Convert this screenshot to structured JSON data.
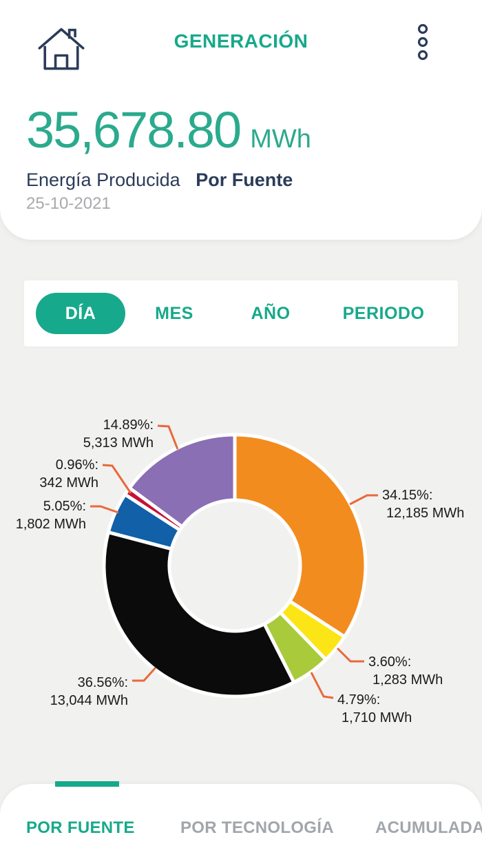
{
  "header": {
    "title": "GENERACIÓN",
    "home_icon": "home-icon",
    "menu_icon": "kebab-menu-icon"
  },
  "summary": {
    "value": "35,678.80",
    "unit": "MWh",
    "subtitle_regular": "Energía Producida",
    "subtitle_bold": "Por Fuente",
    "date": "25-10-2021"
  },
  "period_tabs": {
    "items": [
      {
        "label": "DÍA",
        "active": true
      },
      {
        "label": "MES",
        "active": false
      },
      {
        "label": "AÑO",
        "active": false
      },
      {
        "label": "PERIODO",
        "active": false
      }
    ]
  },
  "bottom_tabs": {
    "items": [
      {
        "label": "POR FUENTE",
        "active": true
      },
      {
        "label": "POR TECNOLOGÍA",
        "active": false
      },
      {
        "label": "ACUMULADA",
        "active": false
      }
    ]
  },
  "colors": {
    "accent": "#17A98B",
    "navy": "#2B3C59",
    "inactive_gray": "#A2A6AB",
    "background": "#F1F1F0",
    "leader_line": "#E8693A",
    "label_text": "#1A1A1A"
  },
  "chart_data": {
    "type": "pie",
    "variant": "donut",
    "title": "Energía Producida Por Fuente",
    "unit": "MWh",
    "total_label": "35,678.80 MWh",
    "start_angle_deg": 0,
    "direction": "clockwise",
    "inner_radius_ratio": 0.5,
    "legend_position": "callout-labels",
    "segments": [
      {
        "percent": 34.15,
        "value": 12185,
        "pct_label": "34.15%:",
        "value_label": "12,185 MWh",
        "color": "#F28C1E"
      },
      {
        "percent": 3.6,
        "value": 1283,
        "pct_label": "3.60%:",
        "value_label": "1,283 MWh",
        "color": "#FCE516"
      },
      {
        "percent": 4.79,
        "value": 1710,
        "pct_label": "4.79%:",
        "value_label": "1,710 MWh",
        "color": "#A9CA3A"
      },
      {
        "percent": 36.56,
        "value": 13044,
        "pct_label": "36.56%:",
        "value_label": "13,044 MWh",
        "color": "#0B0B0B"
      },
      {
        "percent": 5.05,
        "value": 1802,
        "pct_label": "5.05%:",
        "value_label": "1,802 MWh",
        "color": "#1160A8"
      },
      {
        "percent": 0.96,
        "value": 342,
        "pct_label": "0.96%:",
        "value_label": "342 MWh",
        "color": "#C41237"
      },
      {
        "percent": 14.89,
        "value": 5313,
        "pct_label": "14.89%:",
        "value_label": "5,313 MWh",
        "color": "#8A6FB4"
      }
    ]
  }
}
